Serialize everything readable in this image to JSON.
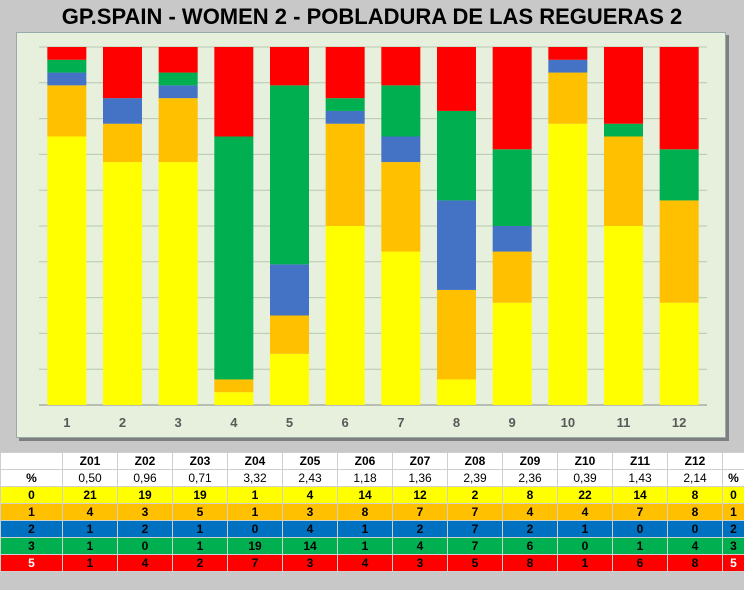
{
  "title": "GP.SPAIN - WOMEN 2 - POBLADURA DE LAS REGUERAS 2",
  "chart_data": {
    "type": "bar",
    "stacked": true,
    "normalized": true,
    "categories": [
      "1",
      "2",
      "3",
      "4",
      "5",
      "6",
      "7",
      "8",
      "9",
      "10",
      "11",
      "12"
    ],
    "series": [
      {
        "level": "0",
        "color": "#ffff00",
        "values": [
          21,
          19,
          19,
          1,
          4,
          14,
          12,
          2,
          8,
          22,
          14,
          8
        ]
      },
      {
        "level": "1",
        "color": "#ffc000",
        "values": [
          4,
          3,
          5,
          1,
          3,
          8,
          7,
          7,
          4,
          4,
          7,
          8
        ]
      },
      {
        "level": "2",
        "color": "#4472c4",
        "values": [
          1,
          2,
          1,
          0,
          4,
          1,
          2,
          7,
          2,
          1,
          0,
          0
        ]
      },
      {
        "level": "3",
        "color": "#00b050",
        "values": [
          1,
          0,
          1,
          19,
          14,
          1,
          4,
          7,
          6,
          0,
          1,
          4
        ]
      },
      {
        "level": "5",
        "color": "#ff0000",
        "values": [
          1,
          4,
          2,
          7,
          3,
          4,
          3,
          5,
          8,
          1,
          6,
          8
        ]
      }
    ],
    "grid": true,
    "legend": "none"
  },
  "table": {
    "corner": "",
    "zones": [
      "Z01",
      "Z02",
      "Z03",
      "Z04",
      "Z05",
      "Z06",
      "Z07",
      "Z08",
      "Z09",
      "Z10",
      "Z11",
      "Z12"
    ],
    "pct_label": "%",
    "pct": [
      "0,50",
      "0,96",
      "0,71",
      "3,32",
      "2,43",
      "1,18",
      "1,36",
      "2,39",
      "2,36",
      "0,39",
      "1,43",
      "2,14"
    ],
    "rows": [
      {
        "label": "0",
        "cls": "r0",
        "values": [
          "21",
          "19",
          "19",
          "1",
          "4",
          "14",
          "12",
          "2",
          "8",
          "22",
          "14",
          "8"
        ]
      },
      {
        "label": "1",
        "cls": "r1",
        "values": [
          "4",
          "3",
          "5",
          "1",
          "3",
          "8",
          "7",
          "7",
          "4",
          "4",
          "7",
          "8"
        ]
      },
      {
        "label": "2",
        "cls": "r2",
        "values": [
          "1",
          "2",
          "1",
          "0",
          "4",
          "1",
          "2",
          "7",
          "2",
          "1",
          "0",
          "0"
        ]
      },
      {
        "label": "3",
        "cls": "r3",
        "values": [
          "1",
          "0",
          "1",
          "19",
          "14",
          "1",
          "4",
          "7",
          "6",
          "0",
          "1",
          "4"
        ]
      },
      {
        "label": "5",
        "cls": "r5",
        "values": [
          "1",
          "4",
          "2",
          "7",
          "3",
          "4",
          "3",
          "5",
          "8",
          "1",
          "6",
          "8"
        ]
      }
    ]
  }
}
